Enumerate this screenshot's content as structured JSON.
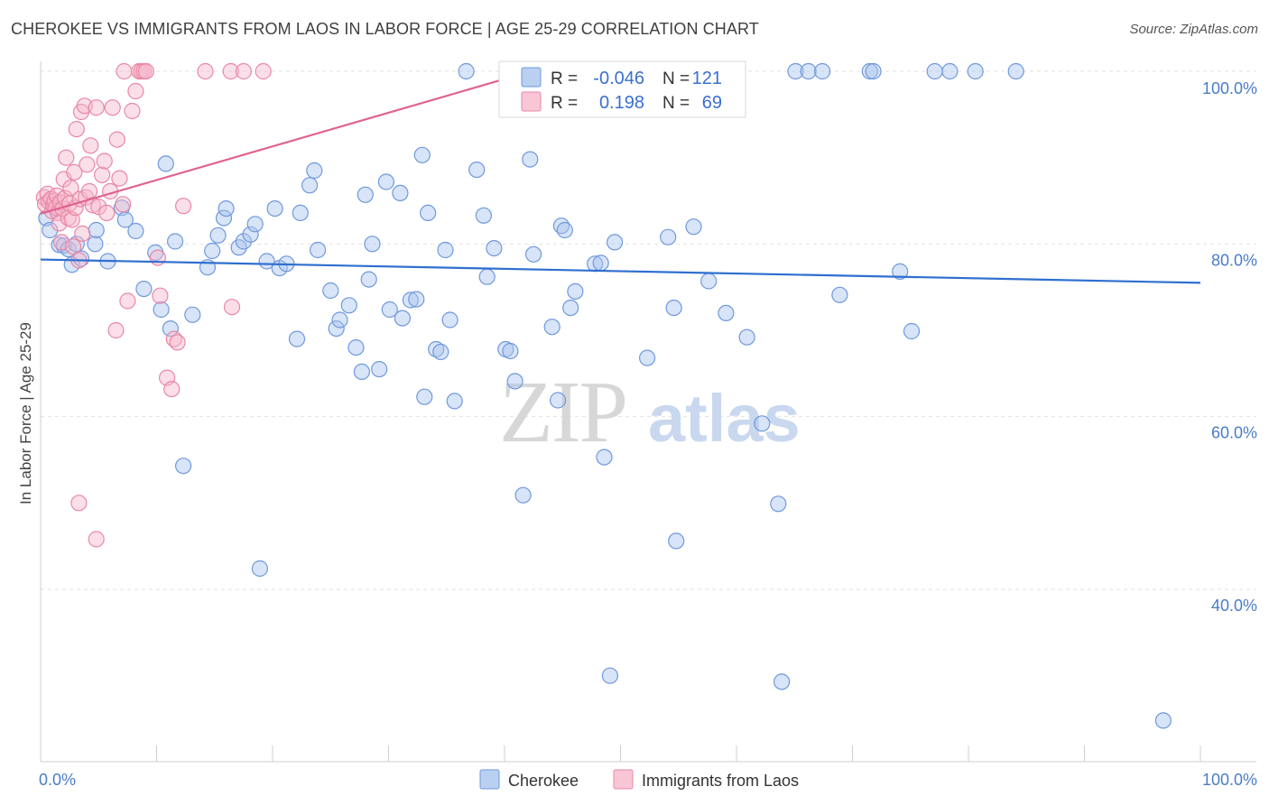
{
  "header": {
    "title": "CHEROKEE VS IMMIGRANTS FROM LAOS IN LABOR FORCE | AGE 25-29 CORRELATION CHART",
    "source": "Source: ZipAtlas.com"
  },
  "watermark": {
    "part1": "ZIP",
    "part2": "atlas"
  },
  "stats": [
    {
      "r_label": "R =",
      "r_value": "-0.046",
      "n_label": "N =",
      "n_value": "121",
      "color": "#a8c4ee",
      "stroke": "#6f99dc"
    },
    {
      "r_label": "R =",
      "r_value": "0.198",
      "n_label": "N =",
      "n_value": "69",
      "color": "#f7b8cb",
      "stroke": "#e987a6"
    }
  ],
  "chart_data": {
    "type": "scatter",
    "ylabel": "In Labor Force | Age 25-29",
    "xlim": [
      0,
      100
    ],
    "ylim": [
      20,
      102
    ],
    "x_tick_labels": [
      "0.0%",
      "100.0%"
    ],
    "y_ticks": [
      {
        "value": 40,
        "label": "40.0%"
      },
      {
        "value": 60,
        "label": "60.0%"
      },
      {
        "value": 80,
        "label": "80.0%"
      },
      {
        "value": 100,
        "label": "100.0%"
      }
    ],
    "grid": true,
    "legend_placement": "bottom",
    "series": [
      {
        "name": "Cherokee",
        "color": "#a8c4ee",
        "stroke": "#6f99dc",
        "line_color": "#2f6fd0",
        "trend": {
          "x0": 0,
          "y0": 78.2,
          "x1": 100,
          "y1": 75.5
        },
        "points": [
          [
            0.5,
            83.0
          ],
          [
            0.8,
            81.6
          ],
          [
            1.2,
            84.3
          ],
          [
            1.6,
            79.9
          ],
          [
            2.0,
            79.8
          ],
          [
            2.4,
            79.4
          ],
          [
            2.7,
            77.6
          ],
          [
            3.1,
            80.0
          ],
          [
            3.5,
            78.3
          ],
          [
            4.7,
            80.0
          ],
          [
            4.8,
            81.6
          ],
          [
            5.8,
            78.0
          ],
          [
            7.0,
            84.2
          ],
          [
            7.3,
            82.8
          ],
          [
            8.2,
            81.5
          ],
          [
            8.9,
            74.8
          ],
          [
            9.9,
            79.0
          ],
          [
            10.4,
            72.4
          ],
          [
            10.8,
            89.3
          ],
          [
            11.2,
            70.2
          ],
          [
            11.6,
            80.3
          ],
          [
            12.3,
            54.3
          ],
          [
            13.1,
            71.8
          ],
          [
            14.4,
            77.3
          ],
          [
            14.8,
            79.2
          ],
          [
            15.3,
            81.0
          ],
          [
            15.8,
            83.0
          ],
          [
            16.0,
            84.1
          ],
          [
            17.1,
            79.6
          ],
          [
            17.5,
            80.3
          ],
          [
            18.1,
            81.1
          ],
          [
            18.5,
            82.3
          ],
          [
            18.9,
            42.4
          ],
          [
            19.5,
            78.0
          ],
          [
            20.2,
            84.1
          ],
          [
            20.6,
            77.2
          ],
          [
            21.2,
            77.7
          ],
          [
            22.1,
            69.0
          ],
          [
            22.4,
            83.6
          ],
          [
            23.2,
            86.8
          ],
          [
            23.6,
            88.5
          ],
          [
            23.9,
            79.3
          ],
          [
            25.0,
            74.6
          ],
          [
            25.5,
            70.2
          ],
          [
            25.8,
            71.2
          ],
          [
            26.6,
            72.9
          ],
          [
            27.2,
            68.0
          ],
          [
            27.7,
            65.2
          ],
          [
            28.0,
            85.7
          ],
          [
            28.3,
            75.9
          ],
          [
            28.6,
            80.0
          ],
          [
            29.2,
            65.5
          ],
          [
            29.8,
            87.2
          ],
          [
            30.1,
            72.4
          ],
          [
            31.0,
            85.9
          ],
          [
            31.2,
            71.4
          ],
          [
            31.9,
            73.5
          ],
          [
            32.4,
            73.6
          ],
          [
            32.9,
            90.3
          ],
          [
            33.1,
            62.3
          ],
          [
            33.4,
            83.6
          ],
          [
            34.1,
            67.8
          ],
          [
            34.5,
            67.5
          ],
          [
            34.9,
            79.3
          ],
          [
            35.3,
            71.2
          ],
          [
            35.7,
            61.8
          ],
          [
            36.7,
            100.0
          ],
          [
            37.6,
            88.6
          ],
          [
            38.2,
            83.3
          ],
          [
            38.5,
            76.2
          ],
          [
            39.1,
            79.5
          ],
          [
            40.1,
            67.8
          ],
          [
            40.5,
            67.6
          ],
          [
            40.9,
            64.1
          ],
          [
            41.6,
            50.9
          ],
          [
            42.2,
            89.8
          ],
          [
            42.5,
            78.8
          ],
          [
            44.1,
            70.4
          ],
          [
            44.6,
            61.9
          ],
          [
            44.9,
            82.1
          ],
          [
            45.2,
            81.6
          ],
          [
            45.7,
            72.6
          ],
          [
            46.1,
            74.5
          ],
          [
            47.8,
            77.7
          ],
          [
            48.3,
            77.8
          ],
          [
            48.6,
            55.3
          ],
          [
            49.1,
            30.0
          ],
          [
            49.5,
            80.2
          ],
          [
            50.2,
            100.0
          ],
          [
            51.1,
            98.0
          ],
          [
            51.6,
            100.0
          ],
          [
            52.3,
            66.8
          ],
          [
            54.1,
            80.8
          ],
          [
            54.6,
            72.6
          ],
          [
            54.8,
            45.6
          ],
          [
            56.3,
            82.0
          ],
          [
            57.6,
            75.7
          ],
          [
            59.1,
            72.0
          ],
          [
            60.9,
            69.2
          ],
          [
            62.2,
            59.2
          ],
          [
            63.6,
            49.9
          ],
          [
            63.9,
            29.3
          ],
          [
            65.1,
            100.0
          ],
          [
            66.2,
            100.0
          ],
          [
            67.4,
            100.0
          ],
          [
            68.9,
            74.1
          ],
          [
            71.5,
            100.0
          ],
          [
            71.8,
            100.0
          ],
          [
            74.1,
            76.8
          ],
          [
            75.1,
            69.9
          ],
          [
            77.1,
            100.0
          ],
          [
            78.4,
            100.0
          ],
          [
            80.6,
            100.0
          ],
          [
            84.1,
            100.0
          ],
          [
            96.8,
            24.8
          ]
        ]
      },
      {
        "name": "Immigrants from Laos",
        "color": "#f7b8cb",
        "stroke": "#e987a6",
        "line_color": "#e0628f",
        "trend": {
          "x0": 0,
          "y0": 83.5,
          "x1": 40.5,
          "y1": 99.3
        },
        "points": [
          [
            0.3,
            85.4
          ],
          [
            0.4,
            84.6
          ],
          [
            0.6,
            85.8
          ],
          [
            0.7,
            84.9
          ],
          [
            0.9,
            85.2
          ],
          [
            1.0,
            83.8
          ],
          [
            1.1,
            84.5
          ],
          [
            1.2,
            85.0
          ],
          [
            1.3,
            84.2
          ],
          [
            1.4,
            85.6
          ],
          [
            1.5,
            83.6
          ],
          [
            1.6,
            82.4
          ],
          [
            1.7,
            84.8
          ],
          [
            1.8,
            80.2
          ],
          [
            1.9,
            84.1
          ],
          [
            2.0,
            87.5
          ],
          [
            2.1,
            85.3
          ],
          [
            2.2,
            90.0
          ],
          [
            2.4,
            83.0
          ],
          [
            2.5,
            84.7
          ],
          [
            2.6,
            86.5
          ],
          [
            2.7,
            82.8
          ],
          [
            2.8,
            79.7
          ],
          [
            2.9,
            88.3
          ],
          [
            3.0,
            84.2
          ],
          [
            3.1,
            93.3
          ],
          [
            3.3,
            78.1
          ],
          [
            3.4,
            85.2
          ],
          [
            3.5,
            95.3
          ],
          [
            3.6,
            81.2
          ],
          [
            3.8,
            96.0
          ],
          [
            3.9,
            85.4
          ],
          [
            4.0,
            89.2
          ],
          [
            4.2,
            86.1
          ],
          [
            4.3,
            91.4
          ],
          [
            4.5,
            84.5
          ],
          [
            4.8,
            95.8
          ],
          [
            5.0,
            84.3
          ],
          [
            5.3,
            88.0
          ],
          [
            5.5,
            89.6
          ],
          [
            5.7,
            83.6
          ],
          [
            6.0,
            86.1
          ],
          [
            6.2,
            95.8
          ],
          [
            6.5,
            70.0
          ],
          [
            6.6,
            92.1
          ],
          [
            6.8,
            87.6
          ],
          [
            7.1,
            84.6
          ],
          [
            7.2,
            100.0
          ],
          [
            7.9,
            95.4
          ],
          [
            7.5,
            73.4
          ],
          [
            8.2,
            97.7
          ],
          [
            8.5,
            100.0
          ],
          [
            8.7,
            100.0
          ],
          [
            8.9,
            100.0
          ],
          [
            9.1,
            100.0
          ],
          [
            10.1,
            78.4
          ],
          [
            10.3,
            74.0
          ],
          [
            10.9,
            64.5
          ],
          [
            11.3,
            63.2
          ],
          [
            11.5,
            69.0
          ],
          [
            11.8,
            68.6
          ],
          [
            12.3,
            84.4
          ],
          [
            14.2,
            100.0
          ],
          [
            16.4,
            100.0
          ],
          [
            17.5,
            100.0
          ],
          [
            19.2,
            100.0
          ],
          [
            3.3,
            50.0
          ],
          [
            4.8,
            45.8
          ],
          [
            16.5,
            72.7
          ]
        ]
      }
    ]
  }
}
